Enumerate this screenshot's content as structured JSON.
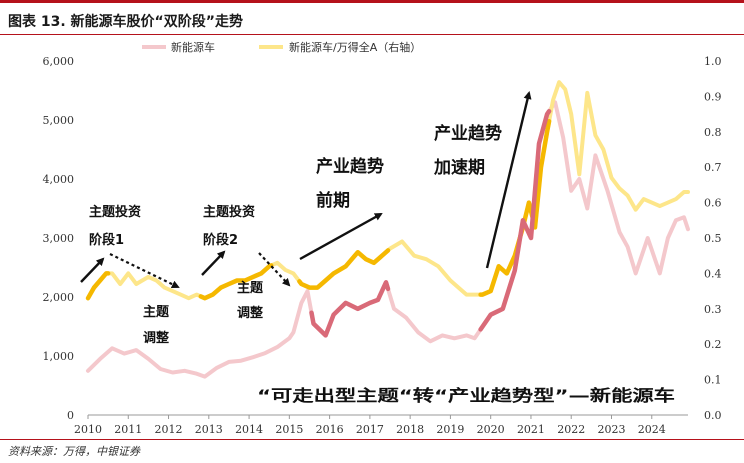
{
  "header": {
    "title": "图表 13. 新能源车股价“双阶段”走势"
  },
  "footer": {
    "source": "资料来源：万得，中银证券"
  },
  "colors": {
    "left_series": "#f4c8cc",
    "right_series": "#fde68a",
    "accent_brand": "#b5121b",
    "highlight_left": "#d96a78",
    "highlight_right": "#f5b800"
  },
  "chart_data": {
    "type": "line",
    "title": "新能源车股价“双阶段”走势",
    "x_axis": {
      "range": [
        2010.0,
        2024.9
      ],
      "ticks": [
        2010,
        2011,
        2012,
        2013,
        2014,
        2015,
        2016,
        2017,
        2018,
        2019,
        2020,
        2021,
        2022,
        2023,
        2024
      ]
    },
    "y_left": {
      "range": [
        0,
        6000
      ],
      "ticks": [
        0,
        1000,
        2000,
        3000,
        4000,
        5000,
        6000
      ],
      "tick_labels": [
        "0",
        "1,000",
        "2,000",
        "3,000",
        "4,000",
        "5,000",
        "6,000"
      ]
    },
    "y_right": {
      "range": [
        0,
        1.0
      ],
      "ticks": [
        0,
        0.1,
        0.2,
        0.3,
        0.4,
        0.5,
        0.6,
        0.7,
        0.8,
        0.9,
        1.0
      ],
      "tick_labels": [
        "0.0",
        "0.1",
        "0.2",
        "0.3",
        "0.4",
        "0.5",
        "0.6",
        "0.7",
        "0.8",
        "0.9",
        "1.0"
      ]
    },
    "legend": {
      "placement": "top-center",
      "entries": [
        "新能源车",
        "新能源车/万得全A（右轴）"
      ]
    },
    "series": [
      {
        "name": "新能源车",
        "axis": "left",
        "x": [
          2010.0,
          2010.3,
          2010.6,
          2010.9,
          2011.2,
          2011.5,
          2011.8,
          2012.1,
          2012.4,
          2012.7,
          2012.9,
          2013.2,
          2013.5,
          2013.8,
          2014.1,
          2014.4,
          2014.7,
          2015.0,
          2015.1,
          2015.3,
          2015.45,
          2015.6,
          2015.9,
          2016.1,
          2016.4,
          2016.7,
          2017.0,
          2017.2,
          2017.4,
          2017.6,
          2017.9,
          2018.2,
          2018.5,
          2018.8,
          2019.1,
          2019.4,
          2019.6,
          2019.8,
          2020.0,
          2020.3,
          2020.6,
          2020.8,
          2021.0,
          2021.2,
          2021.4,
          2021.6,
          2021.8,
          2022.0,
          2022.2,
          2022.4,
          2022.6,
          2022.9,
          2023.2,
          2023.4,
          2023.6,
          2023.9,
          2024.2,
          2024.4,
          2024.6,
          2024.8,
          2024.9
        ],
        "values": [
          750,
          950,
          1130,
          1040,
          1100,
          950,
          780,
          720,
          750,
          700,
          650,
          800,
          900,
          920,
          980,
          1050,
          1150,
          1300,
          1400,
          1900,
          2100,
          1550,
          1350,
          1700,
          1900,
          1800,
          1900,
          1950,
          2250,
          1800,
          1650,
          1400,
          1250,
          1350,
          1300,
          1350,
          1300,
          1500,
          1700,
          1800,
          2450,
          3300,
          3000,
          4600,
          5100,
          5300,
          4700,
          3800,
          4000,
          3500,
          4400,
          3800,
          3100,
          2850,
          2400,
          3000,
          2400,
          3000,
          3300,
          3350,
          3150
        ]
      },
      {
        "name": "新能源车/万得全A（右轴）",
        "axis": "right",
        "x": [
          2010.0,
          2010.15,
          2010.3,
          2010.45,
          2010.6,
          2010.8,
          2011.0,
          2011.2,
          2011.5,
          2011.7,
          2011.9,
          2012.1,
          2012.3,
          2012.5,
          2012.7,
          2012.9,
          2013.1,
          2013.3,
          2013.5,
          2013.7,
          2013.9,
          2014.1,
          2014.3,
          2014.5,
          2014.7,
          2014.9,
          2015.1,
          2015.3,
          2015.5,
          2015.7,
          2015.9,
          2016.1,
          2016.4,
          2016.7,
          2016.9,
          2017.1,
          2017.3,
          2017.5,
          2017.8,
          2018.1,
          2018.4,
          2018.7,
          2019.0,
          2019.2,
          2019.4,
          2019.6,
          2019.8,
          2020.0,
          2020.2,
          2020.4,
          2020.6,
          2020.8,
          2020.95,
          2021.1,
          2021.25,
          2021.4,
          2021.55,
          2021.7,
          2021.85,
          2022.0,
          2022.2,
          2022.4,
          2022.6,
          2022.8,
          2023.0,
          2023.2,
          2023.4,
          2023.6,
          2023.8,
          2024.0,
          2024.2,
          2024.4,
          2024.6,
          2024.8,
          2024.9
        ],
        "values": [
          0.33,
          0.36,
          0.38,
          0.4,
          0.4,
          0.37,
          0.4,
          0.37,
          0.39,
          0.38,
          0.36,
          0.35,
          0.34,
          0.33,
          0.34,
          0.33,
          0.34,
          0.36,
          0.37,
          0.38,
          0.38,
          0.39,
          0.4,
          0.42,
          0.43,
          0.41,
          0.4,
          0.37,
          0.36,
          0.36,
          0.38,
          0.4,
          0.42,
          0.46,
          0.44,
          0.43,
          0.45,
          0.47,
          0.49,
          0.45,
          0.44,
          0.42,
          0.38,
          0.36,
          0.34,
          0.34,
          0.34,
          0.35,
          0.42,
          0.4,
          0.45,
          0.53,
          0.6,
          0.53,
          0.7,
          0.8,
          0.89,
          0.94,
          0.92,
          0.85,
          0.68,
          0.91,
          0.79,
          0.75,
          0.67,
          0.64,
          0.62,
          0.58,
          0.61,
          0.6,
          0.59,
          0.6,
          0.61,
          0.63,
          0.63
        ]
      }
    ],
    "highlights": [
      {
        "series": 1,
        "from": 2010.0,
        "to": 2010.5
      },
      {
        "series": 1,
        "from": 2012.8,
        "to": 2014.55
      },
      {
        "series": 1,
        "from": 2015.25,
        "to": 2017.45
      },
      {
        "series": 1,
        "from": 2019.75,
        "to": 2021.45
      },
      {
        "series": 0,
        "from": 2015.55,
        "to": 2017.45
      },
      {
        "series": 0,
        "from": 2019.75,
        "to": 2021.45
      }
    ],
    "annotations": {
      "phase1": [
        "主题投资",
        "阶段1"
      ],
      "adjust1": [
        "主题",
        "调整"
      ],
      "phase2": [
        "主题投资",
        "阶段2"
      ],
      "adjust2": [
        "主题",
        "调整"
      ],
      "industry_early": [
        "产业趋势",
        "前期"
      ],
      "industry_accel": [
        "产业趋势",
        "加速期"
      ],
      "conclusion": "“可走出型主题“转“产业趋势型”—新能源车"
    }
  }
}
